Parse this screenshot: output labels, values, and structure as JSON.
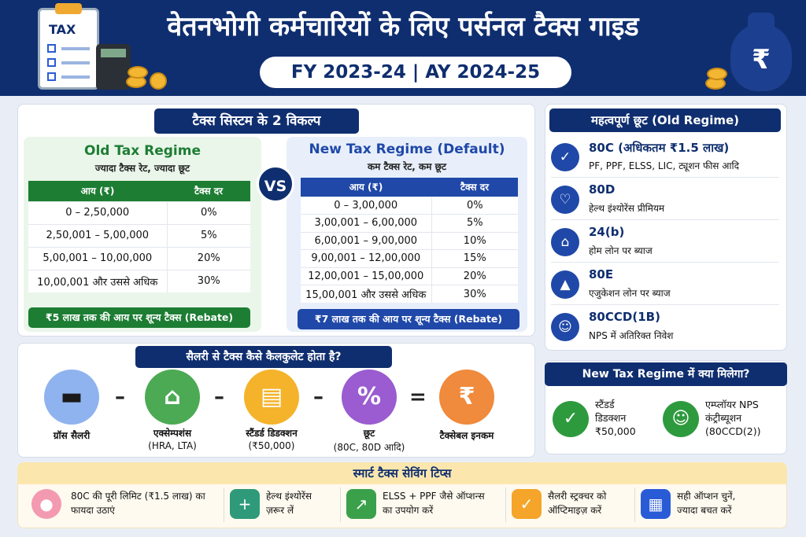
{
  "header": {
    "title": "वेतनभोगी कर्मचारियों के लिए पर्सनल टैक्स गाइड",
    "fy_label": "FY 2023-24  |  AY 2024-25",
    "clipboard_text": "TAX",
    "money_bag_symbol": "₹"
  },
  "regimes": {
    "heading": "टैक्स सिस्टम के 2 विकल्प",
    "vs_label": "VS",
    "old": {
      "title": "Old Tax Regime",
      "subtitle": "ज्यादा टैक्स रेट, ज्यादा छूट",
      "col_income": "आय (₹)",
      "col_rate": "टैक्स दर",
      "rows": [
        {
          "income": "0 – 2,50,000",
          "rate": "0%"
        },
        {
          "income": "2,50,001 – 5,00,000",
          "rate": "5%"
        },
        {
          "income": "5,00,001 – 10,00,000",
          "rate": "20%"
        },
        {
          "income": "10,00,001 और उससे अधिक",
          "rate": "30%"
        }
      ],
      "rebate": "₹5 लाख तक की आय पर शून्य टैक्स (Rebate)",
      "color": "#1d7d33"
    },
    "new": {
      "title": "New Tax Regime (Default)",
      "subtitle": "कम टैक्स रेट, कम छूट",
      "col_income": "आय (₹)",
      "col_rate": "टैक्स दर",
      "rows": [
        {
          "income": "0 – 3,00,000",
          "rate": "0%"
        },
        {
          "income": "3,00,001 – 6,00,000",
          "rate": "5%"
        },
        {
          "income": "6,00,001 – 9,00,000",
          "rate": "10%"
        },
        {
          "income": "9,00,001 – 12,00,000",
          "rate": "15%"
        },
        {
          "income": "12,00,001 – 15,00,000",
          "rate": "20%"
        },
        {
          "income": "15,00,001 और उससे अधिक",
          "rate": "30%"
        }
      ],
      "rebate": "₹7 लाख तक की आय पर शून्य टैक्स (Rebate)",
      "color": "#1f48a8"
    }
  },
  "exemptions": {
    "heading": "महत्वपूर्ण छूट (Old Regime)",
    "items": [
      {
        "code": "80C (अधिकतम ₹1.5 लाख)",
        "desc": "PF, PPF, ELSS, LIC, ट्यूशन फीस आदि",
        "icon": "shield-check-icon"
      },
      {
        "code": "80D",
        "desc": "हेल्थ इंश्योरेंस प्रीमियम",
        "icon": "heart-pulse-icon"
      },
      {
        "code": "24(b)",
        "desc": "होम लोन पर ब्याज",
        "icon": "house-icon"
      },
      {
        "code": "80E",
        "desc": "एजुकेशन लोन पर ब्याज",
        "icon": "graduation-cap-icon"
      },
      {
        "code": "80CCD(1B)",
        "desc": "NPS में अतिरिक्त निवेश",
        "icon": "person-icon"
      }
    ]
  },
  "calculation": {
    "heading": "सैलरी से टैक्स कैसे कैलकुलेट होता है?",
    "steps": [
      {
        "label": "ग्रॉस सैलरी",
        "sub": "",
        "icon": "wallet-icon",
        "color": "#8fb3ee"
      },
      {
        "label": "एक्सेम्पशंस",
        "sub": "(HRA, LTA)",
        "icon": "house-icon",
        "color": "#4caa54"
      },
      {
        "label": "स्टैंडर्ड डिडक्शन",
        "sub": "(₹50,000)",
        "icon": "document-icon",
        "color": "#f4b32a"
      },
      {
        "label": "छूट",
        "sub": "(80C, 80D आदि)",
        "icon": "percent-icon",
        "color": "#9a5cd0"
      },
      {
        "label": "टैक्सेबल इनकम",
        "sub": "",
        "icon": "money-bag-icon",
        "color": "#f08a3c"
      }
    ],
    "operators": [
      "–",
      "–",
      "–",
      "="
    ]
  },
  "new_benefits": {
    "heading": "New Tax Regime में क्या मिलेगा?",
    "items": [
      {
        "lines": [
          "स्टैंडर्ड",
          "डिडक्शन",
          "₹50,000"
        ],
        "icon": "document-check-icon"
      },
      {
        "lines": [
          "एम्प्लॉयर NPS",
          "कंट्रीब्यूशन",
          "(80CCD(2))"
        ],
        "icon": "employee-icon"
      }
    ]
  },
  "tips": {
    "heading": "स्मार्ट टैक्स सेविंग टिप्स",
    "items": [
      {
        "lines": [
          "80C की पूरी लिमिट (₹1.5 लाख) का",
          "फायदा उठाएं"
        ],
        "icon": "piggy-bank-icon",
        "color": "#f39ab0"
      },
      {
        "lines": [
          "हेल्थ इंश्योरेंस",
          "ज़रूर लें"
        ],
        "icon": "health-shield-icon",
        "color": "#2e9a7a"
      },
      {
        "lines": [
          "ELSS + PPF जैसे ऑप्शन्स",
          "का उपयोग करें"
        ],
        "icon": "growth-chart-icon",
        "color": "#3aa14a"
      },
      {
        "lines": [
          "सैलरी स्ट्रक्चर को",
          "ऑप्टिमाइज़ करें"
        ],
        "icon": "checklist-icon",
        "color": "#f4a52a"
      },
      {
        "lines": [
          "सही ऑप्शन चुनें,",
          "ज्यादा बचत करें"
        ],
        "icon": "calculator-icon",
        "color": "#2a5bd7"
      }
    ]
  }
}
